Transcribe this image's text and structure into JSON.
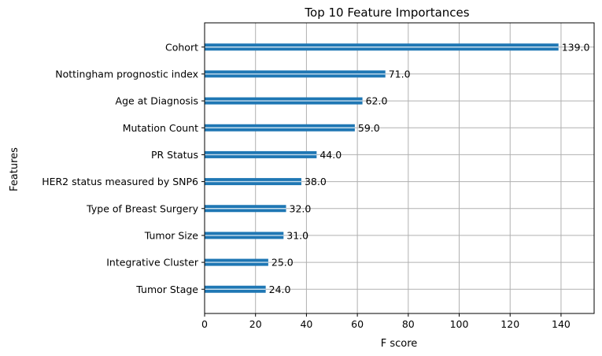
{
  "chart_data": {
    "type": "bar",
    "orientation": "horizontal",
    "title": "Top 10 Feature Importances",
    "xlabel": "F score",
    "ylabel": "Features",
    "xlim": [
      0,
      153
    ],
    "xticks": [
      0,
      20,
      40,
      60,
      80,
      100,
      120,
      140
    ],
    "grid": true,
    "bar_color": "#1f77b4",
    "categories": [
      "Cohort",
      "Nottingham prognostic index",
      "Age at Diagnosis",
      "Mutation Count",
      "PR Status",
      "HER2 status measured by SNP6",
      "Type of Breast Surgery",
      "Tumor Size",
      "Integrative Cluster",
      "Tumor Stage"
    ],
    "values": [
      139.0,
      71.0,
      62.0,
      59.0,
      44.0,
      38.0,
      32.0,
      31.0,
      25.0,
      24.0
    ],
    "value_labels": [
      "139.0",
      "71.0",
      "62.0",
      "59.0",
      "44.0",
      "38.0",
      "32.0",
      "31.0",
      "25.0",
      "24.0"
    ]
  }
}
